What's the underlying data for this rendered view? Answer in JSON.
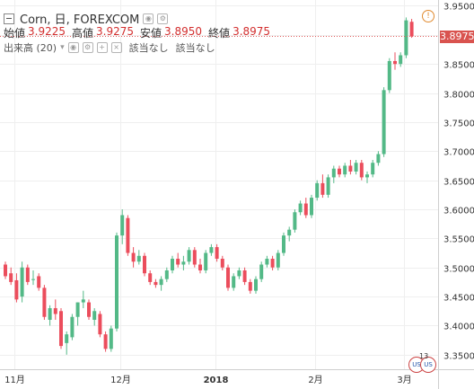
{
  "header": {
    "symbol_title": "Corn, 日, FOREXCOM",
    "ohlc": [
      {
        "label": "始値",
        "value": "3.9225"
      },
      {
        "label": "高値",
        "value": "3.9275"
      },
      {
        "label": "安値",
        "value": "3.8950"
      },
      {
        "label": "終値",
        "value": "3.8975"
      }
    ],
    "volume_label": "出来高 (20)",
    "volume_na_1": "該当なし",
    "volume_na_2": "該当なし"
  },
  "alert_icon": "!",
  "last_price": "3.8975",
  "event_flag_count": "13",
  "colors": {
    "up": "#53b987",
    "down": "#eb4d5c",
    "price_tag": "#d9534f",
    "grid": "#efefef",
    "price_line": "#e05a5a"
  },
  "chart_data": {
    "type": "candlestick",
    "y_ticks": [
      "3.9500",
      "3.9000",
      "3.8500",
      "3.8000",
      "3.7500",
      "3.7000",
      "3.6500",
      "3.6000",
      "3.5500",
      "3.5000",
      "3.4500",
      "3.4000",
      "3.3500"
    ],
    "ylim": [
      3.325,
      3.96
    ],
    "x_labels": [
      "11月",
      "12月",
      "2018",
      "2月",
      "3月"
    ],
    "x_label_index": [
      2,
      21,
      38,
      56,
      72
    ],
    "candles": [
      [
        3.505,
        3.51,
        3.48,
        3.485
      ],
      [
        3.49,
        3.5,
        3.47,
        3.475
      ],
      [
        3.478,
        3.49,
        3.44,
        3.445
      ],
      [
        3.45,
        3.51,
        3.44,
        3.5
      ],
      [
        3.5,
        3.505,
        3.47,
        3.475
      ],
      [
        3.48,
        3.495,
        3.47,
        3.48
      ],
      [
        3.485,
        3.49,
        3.46,
        3.465
      ],
      [
        3.465,
        3.47,
        3.41,
        3.415
      ],
      [
        3.41,
        3.435,
        3.4,
        3.43
      ],
      [
        3.43,
        3.445,
        3.41,
        3.42
      ],
      [
        3.425,
        3.43,
        3.36,
        3.365
      ],
      [
        3.37,
        3.39,
        3.35,
        3.385
      ],
      [
        3.38,
        3.42,
        3.375,
        3.415
      ],
      [
        3.415,
        3.44,
        3.4,
        3.44
      ],
      [
        3.44,
        3.46,
        3.43,
        3.445
      ],
      [
        3.44,
        3.445,
        3.41,
        3.415
      ],
      [
        3.41,
        3.43,
        3.4,
        3.425
      ],
      [
        3.42,
        3.425,
        3.38,
        3.385
      ],
      [
        3.385,
        3.39,
        3.355,
        3.36
      ],
      [
        3.36,
        3.4,
        3.355,
        3.395
      ],
      [
        3.395,
        3.56,
        3.39,
        3.555
      ],
      [
        3.555,
        3.6,
        3.54,
        3.59
      ],
      [
        3.585,
        3.59,
        3.52,
        3.525
      ],
      [
        3.525,
        3.535,
        3.5,
        3.51
      ],
      [
        3.51,
        3.53,
        3.505,
        3.52
      ],
      [
        3.52,
        3.525,
        3.485,
        3.49
      ],
      [
        3.49,
        3.495,
        3.47,
        3.475
      ],
      [
        3.475,
        3.48,
        3.465,
        3.47
      ],
      [
        3.47,
        3.485,
        3.46,
        3.48
      ],
      [
        3.48,
        3.5,
        3.475,
        3.495
      ],
      [
        3.495,
        3.52,
        3.49,
        3.515
      ],
      [
        3.515,
        3.525,
        3.5,
        3.505
      ],
      [
        3.505,
        3.52,
        3.495,
        3.51
      ],
      [
        3.51,
        3.535,
        3.505,
        3.53
      ],
      [
        3.53,
        3.535,
        3.5,
        3.505
      ],
      [
        3.505,
        3.515,
        3.49,
        3.495
      ],
      [
        3.495,
        3.53,
        3.49,
        3.525
      ],
      [
        3.525,
        3.54,
        3.52,
        3.535
      ],
      [
        3.535,
        3.54,
        3.51,
        3.515
      ],
      [
        3.515,
        3.52,
        3.495,
        3.5
      ],
      [
        3.5,
        3.505,
        3.46,
        3.465
      ],
      [
        3.465,
        3.49,
        3.46,
        3.485
      ],
      [
        3.485,
        3.5,
        3.48,
        3.495
      ],
      [
        3.495,
        3.5,
        3.47,
        3.475
      ],
      [
        3.475,
        3.48,
        3.455,
        3.46
      ],
      [
        3.46,
        3.485,
        3.455,
        3.48
      ],
      [
        3.48,
        3.51,
        3.475,
        3.505
      ],
      [
        3.505,
        3.52,
        3.5,
        3.515
      ],
      [
        3.515,
        3.52,
        3.495,
        3.5
      ],
      [
        3.5,
        3.53,
        3.495,
        3.525
      ],
      [
        3.525,
        3.56,
        3.52,
        3.555
      ],
      [
        3.555,
        3.57,
        3.545,
        3.565
      ],
      [
        3.565,
        3.6,
        3.56,
        3.595
      ],
      [
        3.595,
        3.615,
        3.59,
        3.61
      ],
      [
        3.61,
        3.62,
        3.585,
        3.59
      ],
      [
        3.59,
        3.625,
        3.585,
        3.62
      ],
      [
        3.62,
        3.65,
        3.615,
        3.645
      ],
      [
        3.645,
        3.66,
        3.62,
        3.625
      ],
      [
        3.625,
        3.66,
        3.62,
        3.655
      ],
      [
        3.655,
        3.675,
        3.645,
        3.67
      ],
      [
        3.67,
        3.675,
        3.655,
        3.66
      ],
      [
        3.66,
        3.68,
        3.655,
        3.675
      ],
      [
        3.675,
        3.685,
        3.66,
        3.665
      ],
      [
        3.665,
        3.685,
        3.66,
        3.68
      ],
      [
        3.68,
        3.685,
        3.65,
        3.655
      ],
      [
        3.655,
        3.665,
        3.645,
        3.66
      ],
      [
        3.66,
        3.685,
        3.655,
        3.68
      ],
      [
        3.68,
        3.7,
        3.675,
        3.695
      ],
      [
        3.695,
        3.81,
        3.69,
        3.805
      ],
      [
        3.805,
        3.86,
        3.8,
        3.855
      ],
      [
        3.855,
        3.87,
        3.84,
        3.85
      ],
      [
        3.85,
        3.87,
        3.845,
        3.865
      ],
      [
        3.865,
        3.93,
        3.86,
        3.925
      ],
      [
        3.9225,
        3.9275,
        3.895,
        3.8975
      ]
    ],
    "last_price_value": 3.8975
  }
}
